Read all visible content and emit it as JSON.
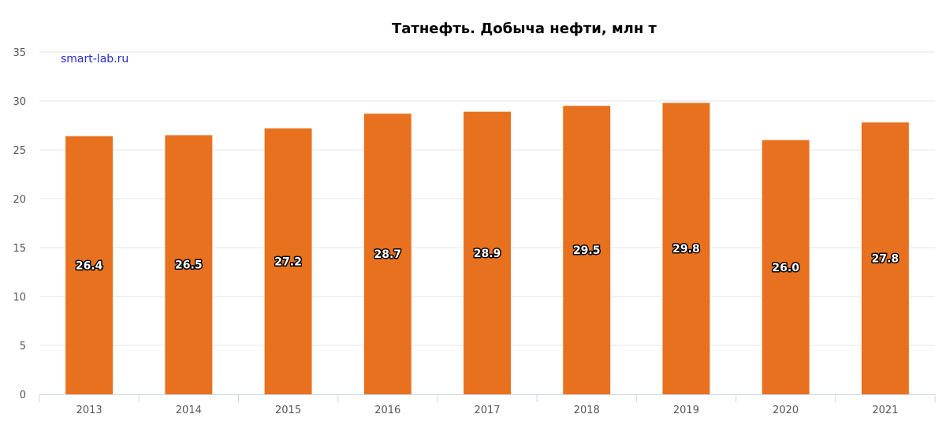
{
  "chart_data": {
    "type": "bar",
    "title": "Татнефть. Добыча нефти, млн т",
    "watermark": "smart-lab.ru",
    "categories": [
      "2013",
      "2014",
      "2015",
      "2016",
      "2017",
      "2018",
      "2019",
      "2020",
      "2021"
    ],
    "values": [
      26.4,
      26.5,
      27.2,
      28.7,
      28.9,
      29.5,
      29.8,
      26.0,
      27.8
    ],
    "value_labels": [
      "26.4",
      "26.5",
      "27.2",
      "28.7",
      "28.9",
      "29.5",
      "29.8",
      "26.0",
      "27.8"
    ],
    "y_ticks": [
      "0",
      "5",
      "10",
      "15",
      "20",
      "25",
      "30",
      "35"
    ],
    "ylim": [
      0,
      35
    ],
    "grid": true,
    "legend": "none",
    "bar_color": "#e8711f"
  }
}
